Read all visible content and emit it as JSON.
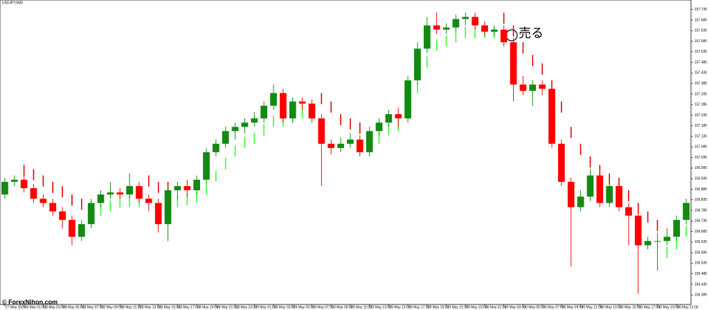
{
  "chart_data": {
    "type": "candlestick",
    "title": "USDJPY,M30",
    "annotation": "売る",
    "watermark": "© ForexNihon.com",
    "categories": [
      "27 May 2024",
      null,
      "28 May 01:00",
      null,
      "28 May 03:00",
      null,
      "28 May 05:00",
      null,
      "28 May 07:00",
      null,
      "28 May 09:00",
      null,
      "28 May 11:00",
      null,
      "28 May 13:00",
      null,
      "28 May 15:00",
      null,
      "28 May 17:00",
      null,
      "28 May 19:00",
      null,
      "28 May 21:00",
      null,
      "28 May 23:00",
      null,
      "29 May 01:00",
      null,
      "29 May 03:00",
      null,
      "29 May 05:00",
      null,
      "29 May 07:00",
      null,
      "29 May 09:00",
      null,
      "29 May 11:00",
      null,
      "29 May 13:00",
      null,
      "29 May 15:00",
      null,
      "29 May 17:00",
      null,
      "29 May 19:00",
      null,
      "29 May 21:00",
      null,
      "29 May 23:00",
      null,
      "30 May 01:00",
      null,
      "30 May 03:00",
      null,
      "30 May 05:00",
      null,
      "30 May 07:00",
      null,
      "30 May 09:00",
      null,
      "30 May 11:00",
      null,
      "30 May 13:00",
      null,
      "30 May 15:00",
      null,
      "30 May 17:00",
      null,
      "30 May 19:00",
      null,
      "30 May 21:00",
      null
    ],
    "open": [
      156.86,
      156.92,
      156.93,
      156.89,
      156.84,
      156.82,
      156.78,
      156.74,
      156.66,
      156.72,
      156.82,
      156.86,
      156.87,
      156.86,
      156.9,
      156.84,
      156.82,
      156.72,
      156.88,
      156.9,
      156.88,
      156.93,
      157.06,
      157.1,
      157.16,
      157.18,
      157.2,
      157.22,
      157.28,
      157.34,
      157.22,
      157.3,
      157.29,
      157.22,
      157.1,
      157.08,
      157.1,
      157.12,
      157.06,
      157.16,
      157.2,
      157.24,
      157.22,
      157.4,
      157.55,
      157.66,
      157.64,
      157.65,
      157.69,
      157.7,
      157.66,
      157.63,
      157.64,
      157.58,
      157.38,
      157.35,
      157.38,
      157.36,
      157.1,
      156.92,
      156.8,
      156.85,
      156.95,
      156.82,
      156.9,
      156.8,
      156.76,
      156.62,
      156.64,
      156.64,
      156.66,
      156.74
    ],
    "high": [
      156.94,
      156.95,
      156.95,
      156.91,
      156.86,
      156.84,
      156.8,
      156.76,
      156.74,
      156.84,
      156.88,
      156.92,
      156.89,
      156.96,
      156.92,
      156.86,
      156.84,
      156.9,
      156.92,
      156.93,
      156.95,
      157.08,
      157.12,
      157.18,
      157.2,
      157.22,
      157.25,
      157.3,
      157.38,
      157.36,
      157.32,
      157.32,
      157.31,
      157.24,
      157.12,
      157.13,
      157.15,
      157.14,
      157.18,
      157.22,
      157.26,
      157.27,
      157.42,
      157.58,
      157.7,
      157.72,
      157.67,
      157.71,
      157.72,
      157.72,
      157.68,
      157.66,
      157.66,
      157.6,
      157.42,
      157.4,
      157.4,
      157.38,
      157.12,
      156.94,
      156.88,
      156.98,
      156.97,
      156.92,
      156.92,
      156.82,
      156.78,
      156.66,
      156.68,
      156.7,
      156.76,
      156.84
    ],
    "low": [
      156.84,
      156.9,
      156.87,
      156.82,
      156.8,
      156.76,
      156.7,
      156.62,
      156.64,
      156.7,
      156.8,
      156.84,
      156.84,
      156.84,
      156.82,
      156.78,
      156.68,
      156.64,
      156.84,
      156.85,
      156.86,
      156.91,
      157.04,
      157.08,
      157.12,
      157.15,
      157.18,
      157.2,
      157.26,
      157.2,
      157.2,
      157.26,
      157.2,
      156.9,
      157.05,
      157.06,
      157.08,
      157.04,
      157.04,
      157.14,
      157.18,
      157.18,
      157.2,
      157.38,
      157.53,
      157.62,
      157.62,
      157.63,
      157.66,
      157.64,
      157.61,
      157.61,
      157.56,
      157.3,
      157.33,
      157.28,
      157.33,
      157.08,
      156.9,
      156.52,
      156.78,
      156.83,
      156.8,
      156.8,
      156.78,
      156.62,
      156.39,
      156.6,
      156.5,
      156.62,
      156.64,
      156.72
    ],
    "close": [
      156.92,
      156.93,
      156.89,
      156.84,
      156.82,
      156.78,
      156.74,
      156.66,
      156.72,
      156.82,
      156.86,
      156.87,
      156.86,
      156.9,
      156.84,
      156.82,
      156.72,
      156.88,
      156.9,
      156.88,
      156.93,
      157.06,
      157.1,
      157.16,
      157.18,
      157.2,
      157.22,
      157.28,
      157.34,
      157.22,
      157.3,
      157.29,
      157.22,
      157.1,
      157.08,
      157.1,
      157.12,
      157.06,
      157.16,
      157.2,
      157.24,
      157.22,
      157.4,
      157.55,
      157.66,
      157.64,
      157.65,
      157.69,
      157.7,
      157.66,
      157.63,
      157.64,
      157.58,
      157.38,
      157.35,
      157.38,
      157.36,
      157.1,
      156.92,
      156.8,
      156.85,
      156.95,
      156.82,
      156.9,
      156.8,
      156.76,
      156.62,
      156.64,
      156.64,
      156.66,
      156.74,
      156.82
    ],
    "up_color": "#138a13",
    "down_color": "#ff0000",
    "indicator": [
      {
        "color": "#e60000",
        "values": [
          null,
          null,
          157.0,
          156.98,
          156.95,
          156.92,
          156.9,
          156.86,
          156.84,
          null,
          null,
          null,
          null,
          null,
          null,
          156.95,
          156.92,
          156.92,
          null,
          null,
          null,
          null,
          null,
          null,
          null,
          null,
          null,
          null,
          null,
          null,
          null,
          null,
          null,
          157.34,
          157.3,
          157.24,
          157.22,
          157.2,
          null,
          null,
          null,
          null,
          null,
          null,
          null,
          null,
          null,
          null,
          null,
          null,
          null,
          null,
          157.72,
          157.66,
          157.58,
          157.52,
          157.48,
          157.4,
          157.3,
          157.18,
          157.1,
          157.04,
          157.0,
          156.96,
          156.94,
          156.88,
          156.82,
          156.78,
          156.74,
          null,
          null,
          null
        ]
      },
      {
        "color": "#33ff33",
        "values": [
          null,
          null,
          null,
          null,
          null,
          null,
          null,
          null,
          null,
          156.74,
          156.76,
          156.78,
          156.8,
          156.8,
          156.8,
          null,
          null,
          null,
          156.8,
          156.81,
          156.82,
          156.86,
          156.92,
          156.98,
          157.04,
          157.08,
          157.1,
          157.14,
          157.18,
          157.18,
          157.2,
          157.22,
          157.22,
          null,
          null,
          null,
          null,
          null,
          157.06,
          157.1,
          157.14,
          157.16,
          157.22,
          157.34,
          157.46,
          157.54,
          157.56,
          157.58,
          157.6,
          157.6,
          157.6,
          157.6,
          null,
          null,
          null,
          null,
          null,
          null,
          null,
          null,
          null,
          null,
          null,
          null,
          null,
          null,
          null,
          null,
          null,
          156.56,
          156.6,
          156.66
        ]
      }
    ],
    "ylim": [
      156.34,
      157.78
    ],
    "yticks": [
      157.735,
      157.685,
      157.635,
      157.585,
      157.535,
      157.485,
      157.435,
      157.385,
      157.335,
      157.285,
      157.235,
      157.185,
      157.135,
      157.085,
      157.035,
      156.985,
      156.935,
      156.885,
      156.835,
      156.785,
      156.735,
      156.685,
      156.635,
      156.585,
      156.535,
      156.485,
      156.435,
      156.385
    ]
  }
}
